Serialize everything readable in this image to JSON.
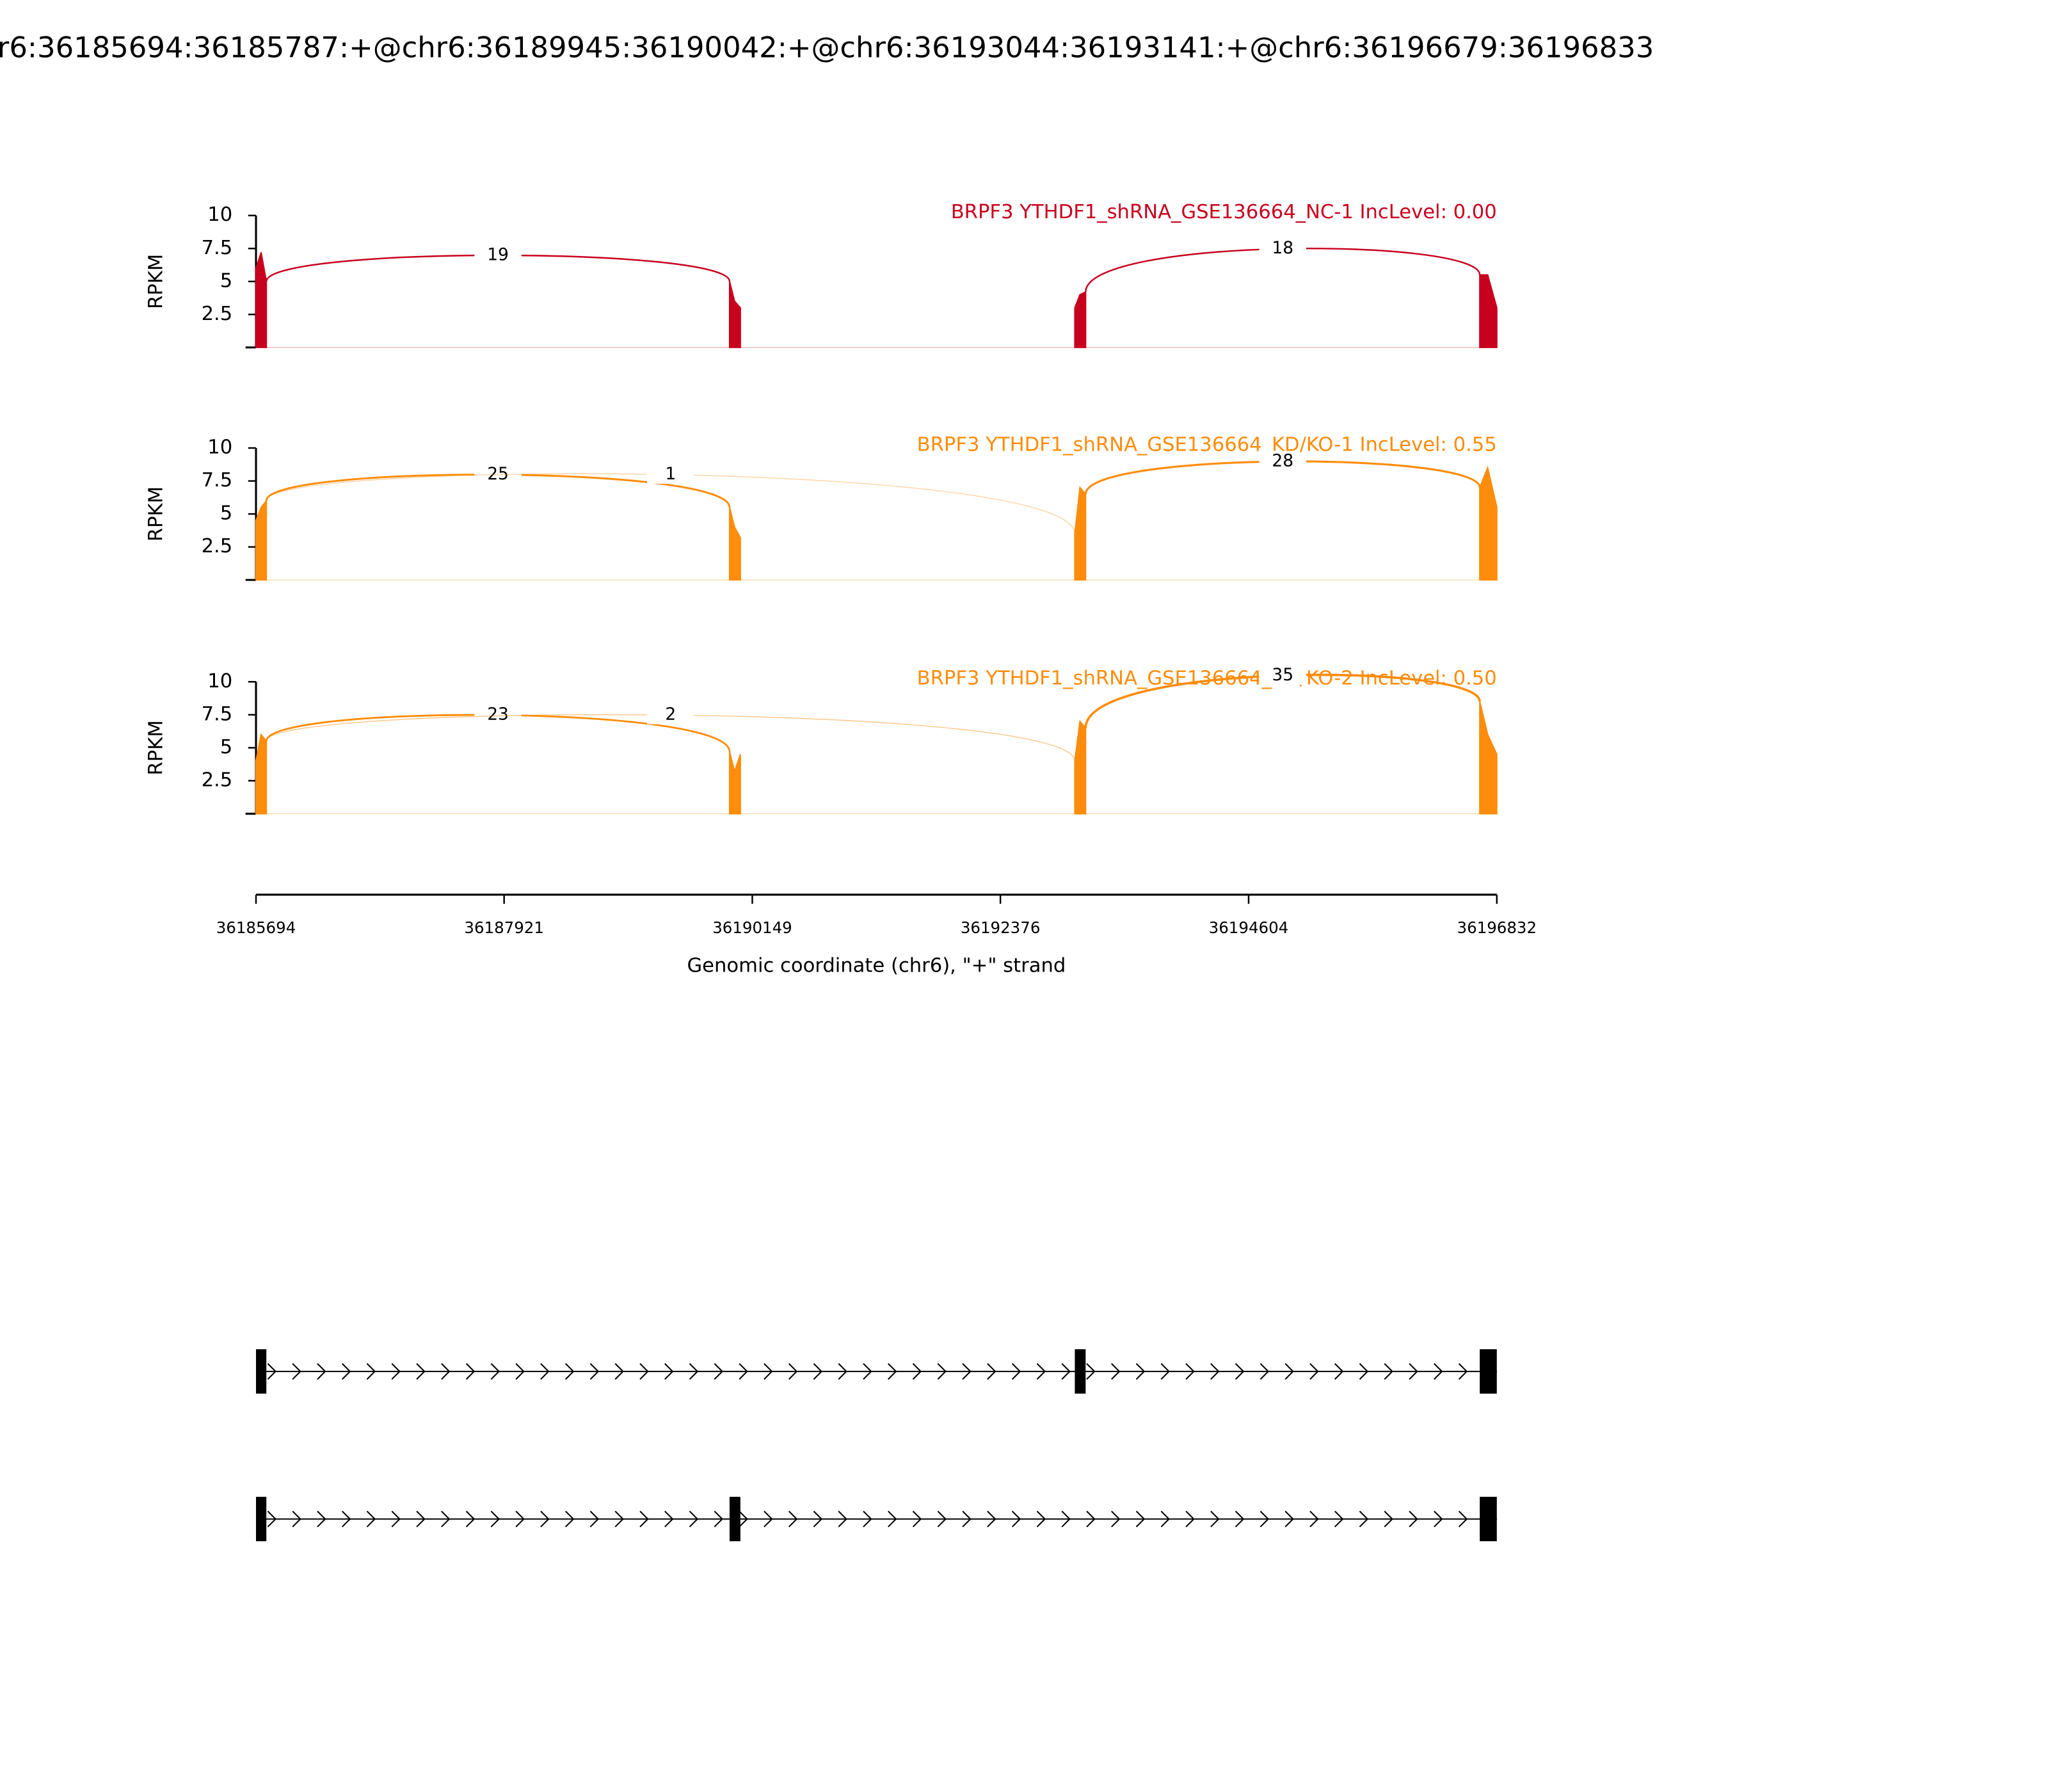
{
  "title": "r6:36185694:36185787:+@chr6:36189945:36190042:+@chr6:36193044:36193141:+@chr6:36196679:36196833",
  "chart_data": [
    {
      "type": "sashimi",
      "title": "BRPF3 YTHDF1_shRNA_GSE136664_NC-1 IncLevel: 0.00",
      "color": "#c8001e",
      "ylabel": "RPKM",
      "xlim": [
        36185694,
        36196832
      ],
      "ylim": [
        0,
        10
      ],
      "yticks": [
        2.5,
        5,
        7.5,
        10
      ],
      "coverage_x": [
        36185694,
        36185740,
        36185787,
        null,
        36189945,
        36189990,
        36190042,
        null,
        36193044,
        36193090,
        36193141,
        null,
        36196679,
        36196750,
        36196832
      ],
      "coverage_y": [
        6,
        7.2,
        5,
        null,
        5,
        3.5,
        3,
        null,
        3,
        4,
        4.2,
        null,
        5.5,
        5.5,
        3
      ],
      "junctions": [
        {
          "start": 36185787,
          "end": 36189945,
          "count": 19
        },
        {
          "start": 36193141,
          "end": 36196679,
          "count": 18
        }
      ]
    },
    {
      "type": "sashimi",
      "title": "BRPF3 YTHDF1_shRNA_GSE136664_KD/KO-1 IncLevel: 0.55",
      "color": "#ff8c0a",
      "ylabel": "RPKM",
      "xlim": [
        36185694,
        36196832
      ],
      "ylim": [
        0,
        10
      ],
      "yticks": [
        2.5,
        5,
        7.5,
        10
      ],
      "coverage_x": [
        36185694,
        36185740,
        36185787,
        null,
        36189945,
        36189990,
        36190042,
        null,
        36193044,
        36193090,
        36193141,
        null,
        36196679,
        36196750,
        36196832
      ],
      "coverage_y": [
        4.5,
        5.5,
        6,
        null,
        5.5,
        4,
        3.2,
        null,
        3.5,
        7,
        6.5,
        null,
        7,
        8.5,
        5.5
      ],
      "junctions": [
        {
          "start": 36185787,
          "end": 36189945,
          "count": 25
        },
        {
          "start": 36185787,
          "end": 36193044,
          "count": 1
        },
        {
          "start": 36193141,
          "end": 36196679,
          "count": 28
        }
      ]
    },
    {
      "type": "sashimi",
      "title": "BRPF3 YTHDF1_shRNA_GSE136664_KD/KO-2 IncLevel: 0.50",
      "color": "#ff8c0a",
      "ylabel": "RPKM",
      "xlim": [
        36185694,
        36196832
      ],
      "ylim": [
        0,
        10
      ],
      "yticks": [
        2.5,
        5,
        7.5,
        10
      ],
      "coverage_x": [
        36185694,
        36185740,
        36185787,
        null,
        36189945,
        36189990,
        36190042,
        null,
        36193044,
        36193090,
        36193141,
        null,
        36196679,
        36196750,
        36196832
      ],
      "coverage_y": [
        4,
        6,
        5.5,
        null,
        4.7,
        3.2,
        4.5,
        null,
        4,
        7,
        6.5,
        null,
        8.5,
        6,
        4.5
      ],
      "junctions": [
        {
          "start": 36185787,
          "end": 36189945,
          "count": 23
        },
        {
          "start": 36185787,
          "end": 36193044,
          "count": 2
        },
        {
          "start": 36193141,
          "end": 36196679,
          "count": 35
        }
      ]
    },
    {
      "type": "axis",
      "xlim": [
        36185694,
        36196832
      ],
      "xticks": [
        36185694,
        36187921,
        36190149,
        36192376,
        36194604,
        36196832
      ],
      "xlabel": "Genomic coordinate (chr6), \"+\" strand"
    },
    {
      "type": "gene_model",
      "xlim": [
        36185694,
        36196832
      ],
      "color": "#000000",
      "transcripts": [
        {
          "exons": [
            [
              36185694,
              36185787
            ],
            [
              36193044,
              36193141
            ],
            [
              36196679,
              36196833
            ]
          ]
        },
        {
          "exons": [
            [
              36185694,
              36185787
            ],
            [
              36189945,
              36190042
            ],
            [
              36196679,
              36196833
            ]
          ]
        }
      ]
    }
  ]
}
